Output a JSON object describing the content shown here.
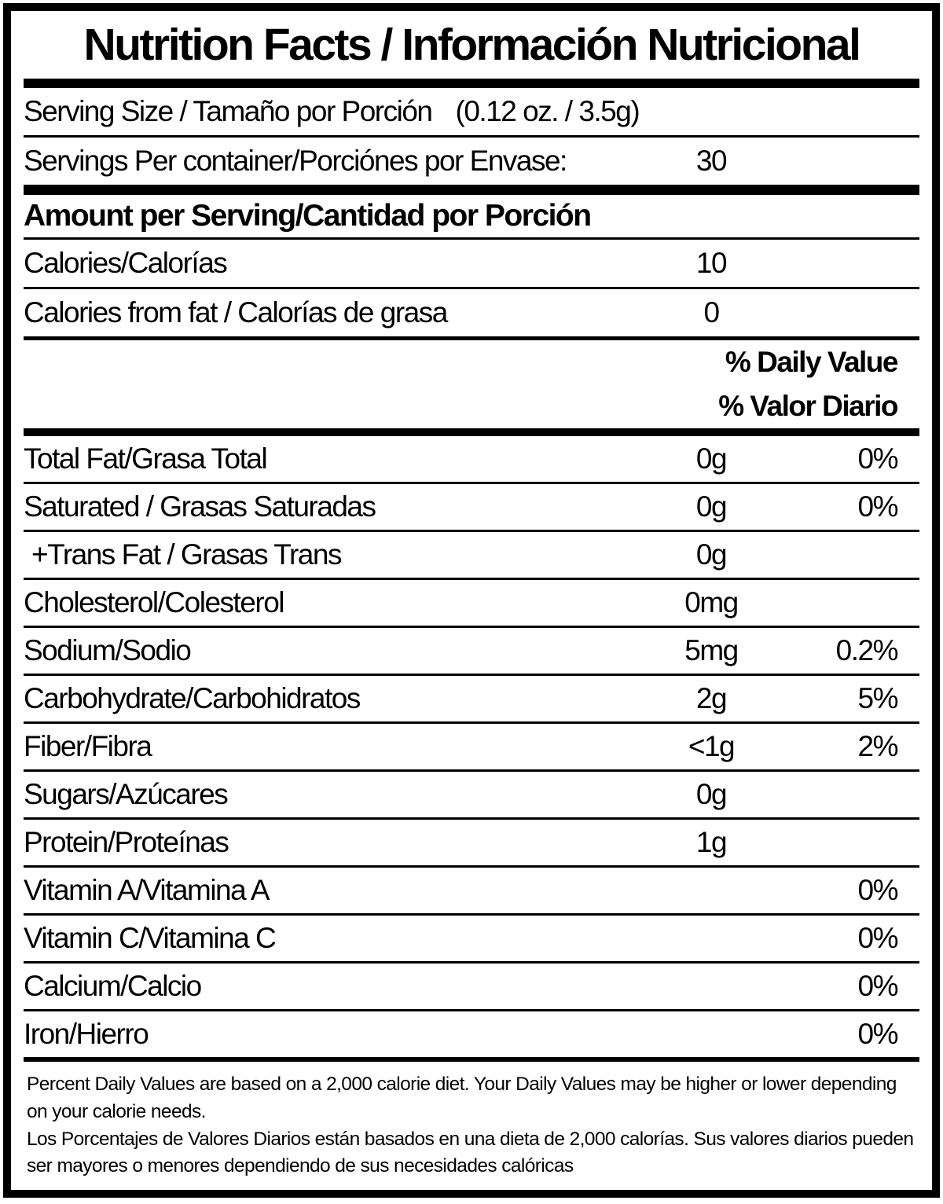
{
  "title": "Nutrition Facts / Información Nutricional",
  "serving_size": {
    "label": "Serving Size / Tamaño por Porción",
    "value": "(0.12 oz. / 3.5g)"
  },
  "servings_per_container": {
    "label": "Servings Per container/Porciónes por Envase:",
    "value": "30"
  },
  "amount_header": "Amount per Serving/Cantidad por Porción",
  "calories": {
    "label": "Calories/Calorías",
    "value": "10"
  },
  "calories_from_fat": {
    "label": "Calories from fat / Calorías de grasa",
    "value": "0"
  },
  "daily_value_header": {
    "en": "% Daily Value",
    "es": "% Valor Diario"
  },
  "nutrients": [
    {
      "label": "Total Fat/Grasa Total",
      "amount": "0g",
      "dv": "0%"
    },
    {
      "label": "Saturated / Grasas Saturadas",
      "amount": "0g",
      "dv": "0%"
    },
    {
      "label": "+Trans Fat / Grasas Trans",
      "amount": "0g"
    },
    {
      "label": "Cholesterol/Colesterol",
      "amount": "0mg"
    },
    {
      "label": "Sodium/Sodio",
      "amount": "5mg",
      "dv": "0.2%"
    },
    {
      "label": "Carbohydrate/Carbohidratos",
      "amount": "2g",
      "dv": "5%"
    },
    {
      "label": "Fiber/Fibra",
      "amount": "<1g",
      "dv": "2%"
    },
    {
      "label": "Sugars/Azúcares",
      "amount": "0g"
    },
    {
      "label": "Protein/Proteínas",
      "amount": "1g"
    },
    {
      "label": "Vitamin A/Vitamina A",
      "dv": "0%"
    },
    {
      "label": "Vitamin C/Vitamina C",
      "dv": "0%"
    },
    {
      "label": "Calcium/Calcio",
      "dv": "0%"
    },
    {
      "label": "Iron/Hierro",
      "dv": "0%"
    }
  ],
  "footnotes": {
    "en": "Percent Daily Values are based on a 2,000 calorie diet. Your Daily Values may be higher or lower depending on your calorie needs.",
    "es": "Los Porcentajes de Valores Diarios están basados en una dieta de 2,000 calorías. Sus valores diarios pueden ser mayores o menores dependiendo de sus necesidades calóricas"
  },
  "colors": {
    "text": "#000000",
    "background": "#ffffff"
  }
}
